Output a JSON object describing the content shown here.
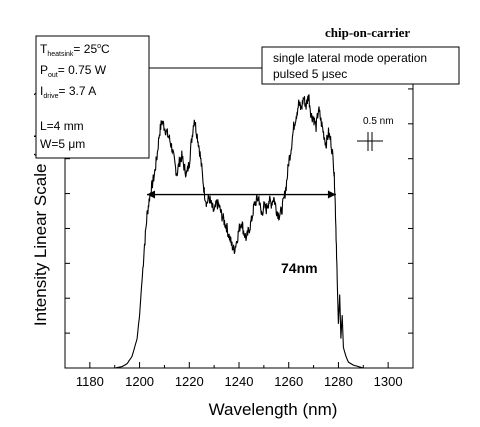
{
  "chart_data": {
    "type": "line",
    "title": "chip-on-carrier",
    "xlabel": "Wavelength (nm)",
    "ylabel": "Intensity Linear Scale (arb. un.)",
    "xlim": [
      1170,
      1310
    ],
    "ylim": [
      0,
      1
    ],
    "x_ticks": [
      "1180",
      "1200",
      "1220",
      "1240",
      "1260",
      "1280",
      "1300"
    ],
    "y_ticks_labeled": false,
    "grid": false,
    "legend": "none",
    "line_color": "#000000",
    "series": [
      {
        "x": [
          1190,
          1193,
          1195,
          1197,
          1199,
          1200,
          1201,
          1202,
          1203,
          1204,
          1205,
          1206,
          1207,
          1208,
          1209,
          1210,
          1211,
          1212,
          1213,
          1214,
          1215,
          1216,
          1217,
          1218,
          1219,
          1220,
          1221,
          1222,
          1223,
          1224,
          1225,
          1226,
          1227,
          1228,
          1229,
          1230,
          1231,
          1232,
          1233,
          1234,
          1235,
          1236,
          1237,
          1238,
          1239,
          1240,
          1241,
          1242,
          1243,
          1244,
          1245,
          1246,
          1247,
          1248,
          1249,
          1250,
          1251,
          1252,
          1253,
          1254,
          1255,
          1256,
          1257,
          1258,
          1259,
          1260,
          1261,
          1262,
          1263,
          1264,
          1265,
          1266,
          1267,
          1268,
          1269,
          1270,
          1271,
          1272,
          1273,
          1274,
          1275,
          1276,
          1277,
          1278,
          1278.5,
          1279,
          1279.5,
          1280,
          1280.5,
          1281,
          1281.5,
          1282,
          1283,
          1284,
          1286,
          1288,
          1290
        ],
        "y": [
          0.0,
          0.005,
          0.015,
          0.04,
          0.1,
          0.18,
          0.3,
          0.42,
          0.52,
          0.58,
          0.62,
          0.66,
          0.72,
          0.8,
          0.84,
          0.82,
          0.8,
          0.78,
          0.75,
          0.7,
          0.66,
          0.7,
          0.72,
          0.68,
          0.66,
          0.7,
          0.78,
          0.85,
          0.8,
          0.75,
          0.68,
          0.6,
          0.56,
          0.58,
          0.55,
          0.53,
          0.56,
          0.55,
          0.52,
          0.5,
          0.48,
          0.45,
          0.42,
          0.4,
          0.43,
          0.47,
          0.5,
          0.46,
          0.44,
          0.47,
          0.5,
          0.55,
          0.57,
          0.58,
          0.52,
          0.55,
          0.54,
          0.57,
          0.56,
          0.58,
          0.54,
          0.52,
          0.53,
          0.57,
          0.62,
          0.7,
          0.75,
          0.82,
          0.86,
          0.9,
          0.88,
          0.92,
          0.89,
          0.93,
          0.86,
          0.85,
          0.82,
          0.88,
          0.84,
          0.8,
          0.76,
          0.8,
          0.77,
          0.7,
          0.62,
          0.48,
          0.3,
          0.15,
          0.25,
          0.1,
          0.18,
          0.07,
          0.04,
          0.02,
          0.01,
          0.005,
          0.0
        ]
      }
    ],
    "annotations": {
      "params": {
        "t_main": "T",
        "t_sub": "heatsink",
        "t_val": "= 25",
        "t_sup": "o",
        "t_unit": "C",
        "p_main": "P",
        "p_sub": "out",
        "p_val": "= 0.75 W",
        "i_main": "I",
        "i_sub": "drive",
        "i_val": "= 3.7 A",
        "length": "L=4 mm",
        "width_pre": "W=5 ",
        "width_mu": "μ",
        "width_unit": "m"
      },
      "mode_line1": "single lateral mode operation",
      "mode_line2": "pulsed 5 μsec",
      "resolution": "0.5 nm",
      "width_label": "74nm",
      "width_arrow_x": [
        1203,
        1279
      ],
      "width_arrow_y": 0.59
    }
  }
}
